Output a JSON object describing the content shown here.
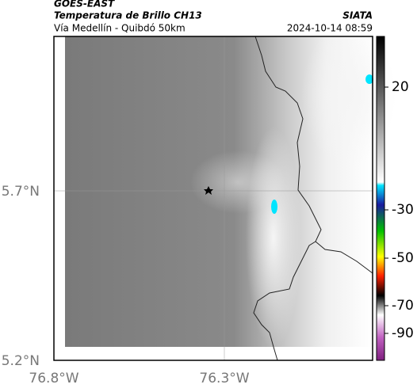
{
  "header": {
    "title": "GOES-EAST",
    "subtitle": "Temperatura de Brillo CH13",
    "source": "SIATA",
    "route": "Vía Medellín - Quibdó 50km",
    "timestamp": "2024-10-14 08:59"
  },
  "axes": {
    "lat_labels": [
      "5.7°N",
      "5.2°N"
    ],
    "lon_labels": [
      "76.8°W",
      "76.3°W"
    ]
  },
  "colorbar": {
    "ticks": [
      20,
      -30,
      -50,
      -70,
      -90
    ]
  }
}
